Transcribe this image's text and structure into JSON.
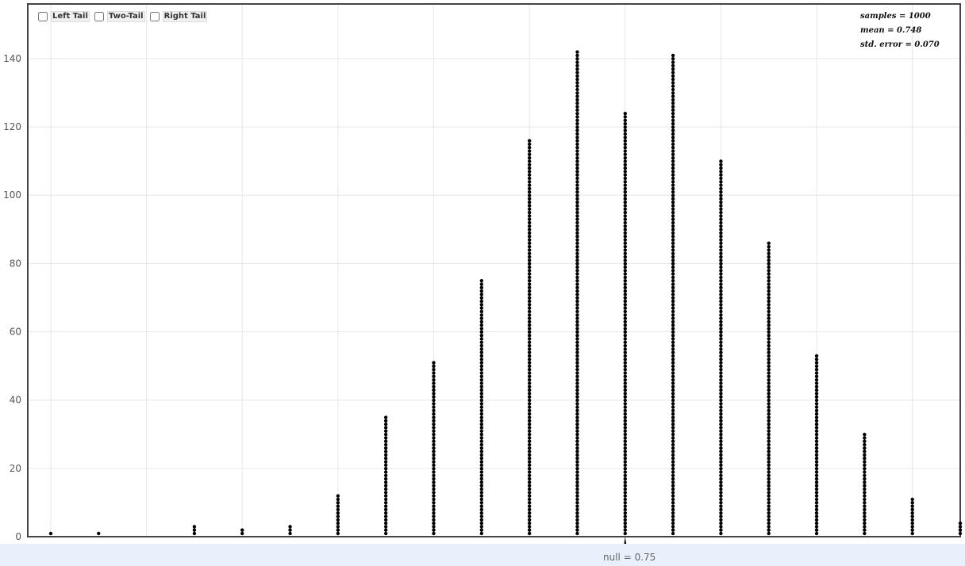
{
  "controls": {
    "left_tail": "Left Tail",
    "two_tail": "Two-Tail",
    "right_tail": "Right Tail"
  },
  "stats": {
    "samples": "samples = 1000",
    "mean": "mean = 0.748",
    "std_error": "std. error = 0.070"
  },
  "null_label": "null = 0.75",
  "chart_data": {
    "type": "dotplot",
    "x": [
      0.45,
      0.475,
      0.525,
      0.55,
      0.575,
      0.6,
      0.625,
      0.65,
      0.675,
      0.7,
      0.725,
      0.75,
      0.775,
      0.8,
      0.825,
      0.85,
      0.875,
      0.9,
      0.925
    ],
    "counts": [
      1,
      1,
      3,
      2,
      3,
      12,
      35,
      51,
      75,
      116,
      142,
      124,
      141,
      110,
      86,
      53,
      30,
      11,
      4
    ],
    "xlim": [
      0.438,
      0.925
    ],
    "ylim": [
      0,
      156
    ],
    "xticks": [
      "0.45",
      "0.50",
      "0.55",
      "0.60",
      "0.65",
      "0.70",
      "0.75",
      "0.80",
      "0.85",
      "0.90"
    ],
    "yticks": [
      "0",
      "20",
      "40",
      "60",
      "80",
      "100",
      "120",
      "140"
    ],
    "null_value": 0.75,
    "grid": true,
    "colors": {
      "dots": "#000000",
      "grid": "#e6e6e6",
      "axis": "#444444"
    }
  }
}
